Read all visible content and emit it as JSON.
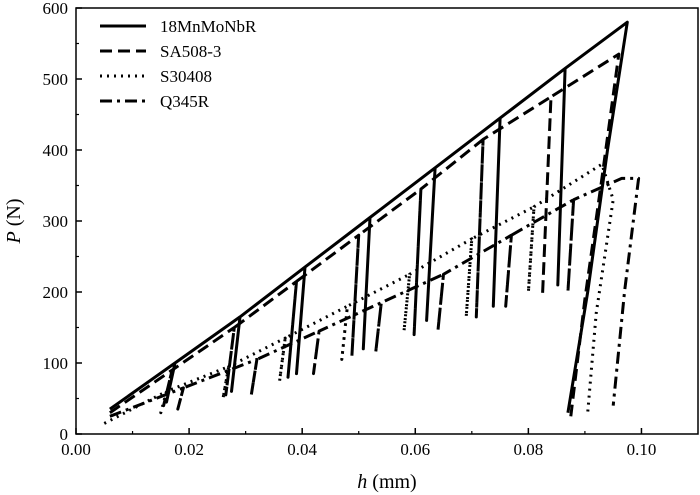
{
  "chart_data": {
    "type": "line",
    "xlabel_var": "h",
    "xlabel_unit": " (mm)",
    "ylabel_var": "P",
    "ylabel_unit": " (N)",
    "xlim": [
      0.0,
      0.11
    ],
    "ylim": [
      0,
      600
    ],
    "xticks": [
      0.0,
      0.02,
      0.04,
      0.06,
      0.08,
      0.1
    ],
    "xtick_labels": [
      "0.00",
      "0.02",
      "0.04",
      "0.06",
      "0.08",
      "0.10"
    ],
    "yticks": [
      0,
      100,
      200,
      300,
      400,
      500,
      600
    ],
    "ytick_labels": [
      "0",
      "100",
      "200",
      "300",
      "400",
      "500",
      "600"
    ],
    "legend_position": "top-left",
    "series": [
      {
        "name": "18MnMoNbR",
        "dash": "solid",
        "color": "#000000",
        "x": [
          0.006,
          0.0175,
          0.016,
          0.0175,
          0.029,
          0.0275,
          0.029,
          0.0405,
          0.039,
          0.0405,
          0.052,
          0.0508,
          0.052,
          0.0635,
          0.062,
          0.0635,
          0.075,
          0.0738,
          0.075,
          0.0865,
          0.0852,
          0.0865,
          0.0975,
          0.094,
          0.0905,
          0.087
        ],
        "y": [
          35,
          100,
          45,
          100,
          165,
          60,
          165,
          235,
          85,
          235,
          305,
          120,
          305,
          375,
          160,
          375,
          445,
          180,
          445,
          515,
          210,
          515,
          580,
          400,
          200,
          30
        ]
      },
      {
        "name": "SA508-3",
        "dash": "dash",
        "color": "#000000",
        "x": [
          0.006,
          0.017,
          0.0155,
          0.017,
          0.028,
          0.0265,
          0.028,
          0.039,
          0.0375,
          0.039,
          0.05,
          0.0488,
          0.05,
          0.061,
          0.0598,
          0.061,
          0.072,
          0.0708,
          0.072,
          0.084,
          0.0825,
          0.084,
          0.096,
          0.093,
          0.09,
          0.0875
        ],
        "y": [
          30,
          90,
          40,
          90,
          150,
          55,
          150,
          215,
          80,
          215,
          280,
          110,
          280,
          345,
          140,
          345,
          415,
          165,
          415,
          475,
          195,
          475,
          535,
          360,
          190,
          25
        ]
      },
      {
        "name": "S30408",
        "dash": "dot",
        "color": "#000000",
        "x": [
          0.005,
          0.016,
          0.015,
          0.016,
          0.027,
          0.026,
          0.027,
          0.037,
          0.036,
          0.037,
          0.048,
          0.047,
          0.048,
          0.059,
          0.058,
          0.059,
          0.07,
          0.069,
          0.07,
          0.081,
          0.08,
          0.081,
          0.093,
          0.095,
          0.092,
          0.0905
        ],
        "y": [
          15,
          60,
          30,
          60,
          95,
          50,
          95,
          135,
          75,
          135,
          180,
          105,
          180,
          225,
          145,
          225,
          275,
          165,
          275,
          320,
          200,
          320,
          380,
          330,
          170,
          30
        ]
      },
      {
        "name": "Q345R",
        "dash": "dashdot",
        "color": "#000000",
        "x": [
          0.006,
          0.019,
          0.018,
          0.019,
          0.032,
          0.031,
          0.032,
          0.043,
          0.042,
          0.043,
          0.054,
          0.053,
          0.054,
          0.065,
          0.064,
          0.065,
          0.077,
          0.076,
          0.077,
          0.088,
          0.087,
          0.088,
          0.0965,
          0.0995,
          0.097,
          0.095
        ],
        "y": [
          25,
          65,
          35,
          65,
          105,
          55,
          105,
          145,
          85,
          145,
          185,
          115,
          185,
          225,
          145,
          225,
          280,
          180,
          280,
          330,
          200,
          330,
          360,
          360,
          200,
          40
        ]
      }
    ]
  }
}
